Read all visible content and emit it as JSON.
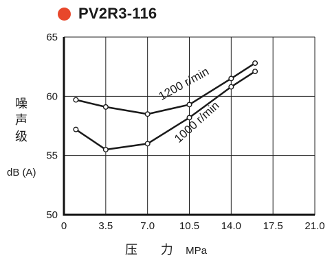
{
  "legend": {
    "marker_color": "#e8472b",
    "text": "PV2R3-116"
  },
  "axes": {
    "y_label_chars": [
      "噪",
      "声",
      "级"
    ],
    "y_unit": "dB (A)",
    "x_label": "压 力",
    "x_unit": "MPa"
  },
  "chart_data": {
    "type": "line",
    "x_ticks": [
      "0",
      "3.5",
      "7.0",
      "10.5",
      "14.0",
      "17.5",
      "21.0"
    ],
    "y_ticks": [
      "50",
      "55",
      "60",
      "65"
    ],
    "xlim": [
      0,
      21
    ],
    "ylim": [
      50,
      65
    ],
    "grid": true,
    "series": [
      {
        "name": "1200 r/min",
        "x": [
          1.0,
          3.5,
          7.0,
          10.5,
          14.0,
          16.0
        ],
        "y": [
          59.7,
          59.1,
          58.5,
          59.3,
          61.5,
          62.8
        ]
      },
      {
        "name": "1000 r/min",
        "x": [
          1.0,
          3.5,
          7.0,
          10.5,
          14.0,
          16.0
        ],
        "y": [
          57.2,
          55.5,
          56.0,
          58.2,
          60.8,
          62.1
        ]
      }
    ]
  }
}
